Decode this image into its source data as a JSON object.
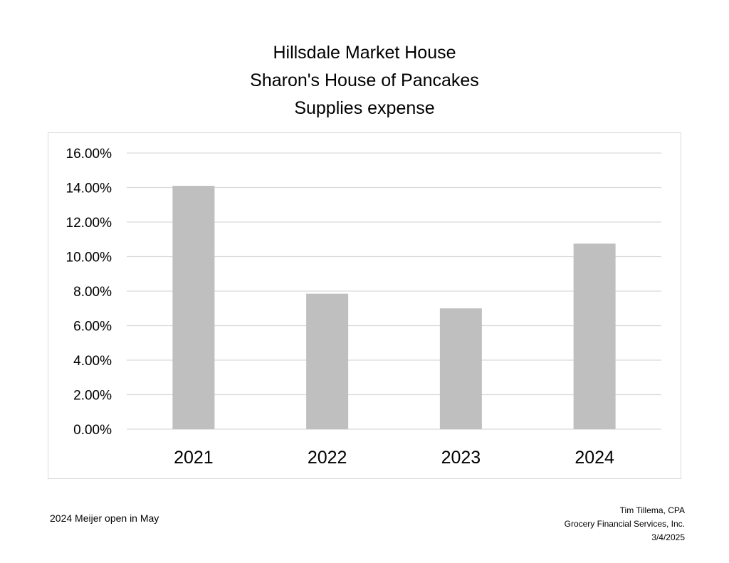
{
  "header": {
    "line1": "Hillsdale Market House",
    "line2": "Sharon's House of Pancakes",
    "line3": "Supplies expense"
  },
  "footer": {
    "note": "2024 Meijer open in May",
    "author": "Tim Tillema, CPA",
    "company": "Grocery Financial Services, Inc.",
    "date": "3/4/2025"
  },
  "chart_data": {
    "type": "bar",
    "title": "Hillsdale Market House\nSharon's House of Pancakes\nSupplies expense",
    "categories": [
      "2021",
      "2022",
      "2023",
      "2024"
    ],
    "values": [
      14.1,
      7.85,
      7.0,
      10.75
    ],
    "y_tick_labels": [
      "0.00%",
      "2.00%",
      "4.00%",
      "6.00%",
      "8.00%",
      "10.00%",
      "12.00%",
      "14.00%",
      "16.00%"
    ],
    "ylim": [
      0,
      16
    ],
    "grid": true,
    "legend": "none",
    "bar_color": "#bfbfbf",
    "grid_color": "#d9d9d9"
  }
}
